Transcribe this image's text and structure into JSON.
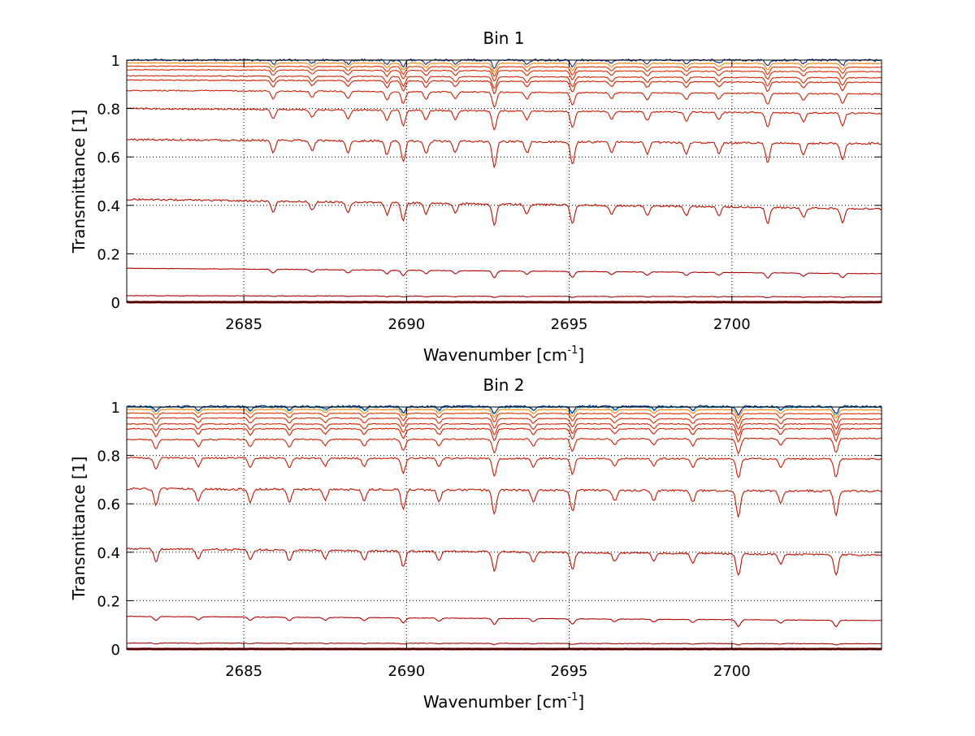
{
  "chart_data": [
    {
      "type": "line",
      "title": "Bin 1",
      "xlabel": "Wavenumber [cm",
      "xlabel_sup": "-1",
      "xlabel_end": "]",
      "ylabel": "Transmittance [1]",
      "xlim": [
        2681.4,
        2704.6
      ],
      "ylim": [
        0,
        1
      ],
      "xticks": [
        2685,
        2690,
        2695,
        2700
      ],
      "xtick_labels": [
        "2685",
        "2690",
        "2695",
        "2700"
      ],
      "yticks": [
        0,
        0.2,
        0.4,
        0.6,
        0.8,
        1
      ],
      "ytick_labels": [
        "0",
        "0.2",
        "0.4",
        "0.6",
        "0.8",
        "1"
      ],
      "grid": true,
      "line_dips": [
        {
          "x": 2685.9,
          "depth": 0.5
        },
        {
          "x": 2687.1,
          "depth": 0.4
        },
        {
          "x": 2688.2,
          "depth": 0.45
        },
        {
          "x": 2689.4,
          "depth": 0.55
        },
        {
          "x": 2689.9,
          "depth": 0.8
        },
        {
          "x": 2690.6,
          "depth": 0.5
        },
        {
          "x": 2691.5,
          "depth": 0.45
        },
        {
          "x": 2692.7,
          "depth": 1.0
        },
        {
          "x": 2693.7,
          "depth": 0.45
        },
        {
          "x": 2695.1,
          "depth": 0.85
        },
        {
          "x": 2696.3,
          "depth": 0.4
        },
        {
          "x": 2697.4,
          "depth": 0.45
        },
        {
          "x": 2698.6,
          "depth": 0.45
        },
        {
          "x": 2699.6,
          "depth": 0.4
        },
        {
          "x": 2701.1,
          "depth": 0.75
        },
        {
          "x": 2702.2,
          "depth": 0.45
        },
        {
          "x": 2703.4,
          "depth": 0.65
        }
      ],
      "series": [
        {
          "color": "#8b0000",
          "values": [
            0.0,
            0.0
          ]
        },
        {
          "color": "#a00000",
          "values": [
            0.027,
            0.022
          ]
        },
        {
          "color": "#b00000",
          "values": [
            0.14,
            0.118
          ]
        },
        {
          "color": "#b81000",
          "values": [
            0.425,
            0.385
          ]
        },
        {
          "color": "#c01500",
          "values": [
            0.672,
            0.655
          ]
        },
        {
          "color": "#c81a00",
          "values": [
            0.8,
            0.78
          ]
        },
        {
          "color": "#cc1f00",
          "values": [
            0.875,
            0.86
          ]
        },
        {
          "color": "#d02000",
          "values": [
            0.918,
            0.908
          ]
        },
        {
          "color": "#d42500",
          "values": [
            0.935,
            0.927
          ]
        },
        {
          "color": "#d82a00",
          "values": [
            0.96,
            0.952
          ]
        },
        {
          "color": "#e03000",
          "values": [
            0.975,
            0.97
          ]
        },
        {
          "color": "#ff8000",
          "values": [
            0.988,
            0.986
          ]
        },
        {
          "color": "#0a2a8c",
          "values": [
            1.0,
            1.0
          ]
        }
      ]
    },
    {
      "type": "line",
      "title": "Bin 2",
      "xlabel": "Wavenumber [cm",
      "xlabel_sup": "-1",
      "xlabel_end": "]",
      "ylabel": "Transmittance [1]",
      "xlim": [
        2681.4,
        2704.6
      ],
      "ylim": [
        0,
        1
      ],
      "xticks": [
        2685,
        2690,
        2695,
        2700
      ],
      "xtick_labels": [
        "2685",
        "2690",
        "2695",
        "2700"
      ],
      "yticks": [
        0,
        0.2,
        0.4,
        0.6,
        0.8,
        1
      ],
      "ytick_labels": [
        "0",
        "0.2",
        "0.4",
        "0.6",
        "0.8",
        "1"
      ],
      "grid": true,
      "line_dips": [
        {
          "x": 2682.3,
          "depth": 0.6
        },
        {
          "x": 2683.6,
          "depth": 0.45
        },
        {
          "x": 2685.2,
          "depth": 0.5
        },
        {
          "x": 2686.4,
          "depth": 0.5
        },
        {
          "x": 2687.5,
          "depth": 0.4
        },
        {
          "x": 2688.7,
          "depth": 0.45
        },
        {
          "x": 2689.9,
          "depth": 0.75
        },
        {
          "x": 2691.0,
          "depth": 0.45
        },
        {
          "x": 2692.7,
          "depth": 0.9
        },
        {
          "x": 2693.9,
          "depth": 0.45
        },
        {
          "x": 2695.1,
          "depth": 0.8
        },
        {
          "x": 2696.4,
          "depth": 0.4
        },
        {
          "x": 2697.6,
          "depth": 0.4
        },
        {
          "x": 2698.8,
          "depth": 0.45
        },
        {
          "x": 2700.2,
          "depth": 1.0
        },
        {
          "x": 2701.5,
          "depth": 0.45
        },
        {
          "x": 2703.2,
          "depth": 0.95
        }
      ],
      "series": [
        {
          "color": "#8b0000",
          "values": [
            0.0,
            0.0
          ]
        },
        {
          "color": "#a00000",
          "values": [
            0.025,
            0.022
          ]
        },
        {
          "color": "#b00000",
          "values": [
            0.135,
            0.118
          ]
        },
        {
          "color": "#b81000",
          "values": [
            0.415,
            0.388
          ]
        },
        {
          "color": "#c01500",
          "values": [
            0.662,
            0.652
          ]
        },
        {
          "color": "#c81a00",
          "values": [
            0.79,
            0.785
          ]
        },
        {
          "color": "#cc1f00",
          "values": [
            0.865,
            0.87
          ]
        },
        {
          "color": "#d02000",
          "values": [
            0.91,
            0.91
          ]
        },
        {
          "color": "#d42500",
          "values": [
            0.93,
            0.93
          ]
        },
        {
          "color": "#d82a00",
          "values": [
            0.955,
            0.95
          ]
        },
        {
          "color": "#e03000",
          "values": [
            0.975,
            0.972
          ]
        },
        {
          "color": "#ff8000",
          "values": [
            0.99,
            0.988
          ]
        },
        {
          "color": "#1ec8e0",
          "values": [
            1.0,
            1.0
          ]
        },
        {
          "color": "#0a2a8c",
          "values": [
            1.002,
            1.002
          ]
        }
      ]
    }
  ]
}
